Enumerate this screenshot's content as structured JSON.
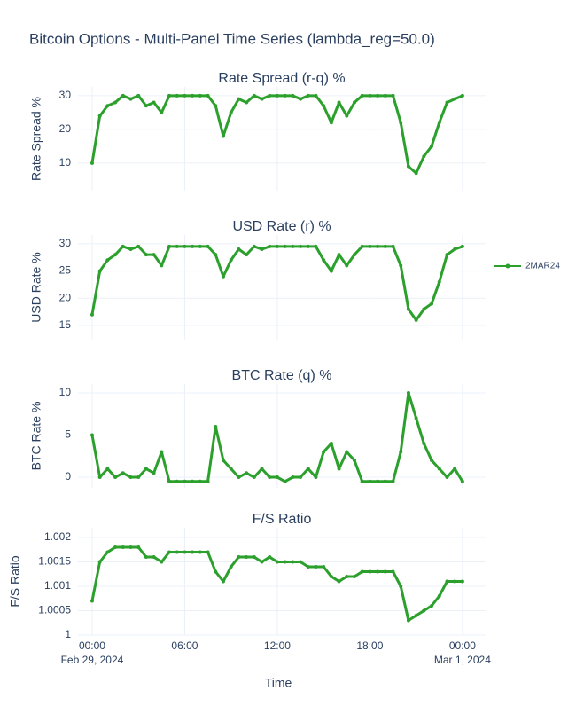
{
  "chart_data": {
    "type": "line",
    "title": "Bitcoin Options - Multi-Panel Time Series (lambda_reg=50.0)",
    "xlabel": "Time",
    "name": "2MAR24",
    "color": "#2ca02c",
    "grid": true,
    "xlim": [
      "2024-02-28T23:05",
      "2024-03-01T01:30"
    ],
    "xticks": [
      {
        "value": "2024-02-29T00:00",
        "label": "00:00",
        "date": "Feb 29, 2024"
      },
      {
        "value": "2024-02-29T06:00",
        "label": "06:00"
      },
      {
        "value": "2024-02-29T12:00",
        "label": "12:00"
      },
      {
        "value": "2024-02-29T18:00",
        "label": "18:00"
      },
      {
        "value": "2024-03-01T00:00",
        "label": "00:00",
        "date": "Mar 1, 2024"
      }
    ],
    "x": [
      "2024-02-29T00:00",
      "2024-02-29T00:30",
      "2024-02-29T01:00",
      "2024-02-29T01:30",
      "2024-02-29T02:00",
      "2024-02-29T02:30",
      "2024-02-29T03:00",
      "2024-02-29T03:30",
      "2024-02-29T04:00",
      "2024-02-29T04:30",
      "2024-02-29T05:00",
      "2024-02-29T05:30",
      "2024-02-29T06:00",
      "2024-02-29T06:30",
      "2024-02-29T07:00",
      "2024-02-29T07:30",
      "2024-02-29T08:00",
      "2024-02-29T08:30",
      "2024-02-29T09:00",
      "2024-02-29T09:30",
      "2024-02-29T10:00",
      "2024-02-29T10:30",
      "2024-02-29T11:00",
      "2024-02-29T11:30",
      "2024-02-29T12:00",
      "2024-02-29T12:30",
      "2024-02-29T13:00",
      "2024-02-29T13:30",
      "2024-02-29T14:00",
      "2024-02-29T14:30",
      "2024-02-29T15:00",
      "2024-02-29T15:30",
      "2024-02-29T16:00",
      "2024-02-29T16:30",
      "2024-02-29T17:00",
      "2024-02-29T17:30",
      "2024-02-29T18:00",
      "2024-02-29T18:30",
      "2024-02-29T19:00",
      "2024-02-29T19:30",
      "2024-02-29T20:00",
      "2024-02-29T20:30",
      "2024-02-29T21:00",
      "2024-02-29T21:30",
      "2024-02-29T22:00",
      "2024-02-29T22:30",
      "2024-02-29T23:00",
      "2024-02-29T23:30",
      "2024-03-01T00:00"
    ],
    "panels": [
      {
        "title": "Rate Spread (r-q) %",
        "ylabel": "Rate Spread %",
        "ylim": [
          1.8,
          32.6
        ],
        "yticks": [
          10,
          20,
          30
        ],
        "values": [
          10,
          24,
          27,
          28,
          30,
          29,
          30,
          27,
          28,
          25,
          30,
          30,
          30,
          30,
          30,
          30,
          27,
          18,
          25,
          29,
          28,
          30,
          29,
          30,
          30,
          30,
          30,
          29,
          30,
          30,
          27,
          22,
          28,
          24,
          28,
          30,
          30,
          30,
          30,
          30,
          22,
          9,
          7,
          12,
          15,
          22,
          28,
          29,
          30
        ]
      },
      {
        "title": "USD Rate (r) %",
        "ylabel": "USD Rate %",
        "ylim": [
          12.4,
          31.6
        ],
        "yticks": [
          15,
          20,
          25,
          30
        ],
        "values": [
          17,
          25,
          27,
          28,
          29.5,
          29,
          29.5,
          28,
          28,
          26,
          29.5,
          29.5,
          29.5,
          29.5,
          29.5,
          29.5,
          28,
          24,
          27,
          29,
          28,
          29.5,
          29,
          29.5,
          29.5,
          29.5,
          29.5,
          29.5,
          29.5,
          29.5,
          27,
          25,
          28,
          26,
          28,
          29.5,
          29.5,
          29.5,
          29.5,
          29.5,
          26,
          18,
          16,
          18,
          19,
          23,
          28,
          29,
          29.5
        ]
      },
      {
        "title": "BTC Rate (q) %",
        "ylabel": "BTC Rate %",
        "ylim": [
          -1.26,
          11.05
        ],
        "yticks": [
          0,
          5,
          10
        ],
        "values": [
          5,
          0,
          1,
          0,
          0.5,
          0,
          0,
          1,
          0.5,
          3,
          -0.5,
          -0.5,
          -0.5,
          -0.5,
          -0.5,
          -0.5,
          6,
          2,
          1,
          0,
          0.5,
          0,
          1,
          0,
          0,
          -0.5,
          0,
          0,
          1,
          0,
          3,
          4,
          1,
          3,
          2,
          -0.5,
          -0.5,
          -0.5,
          -0.5,
          -0.5,
          3,
          10,
          7,
          4,
          2,
          1,
          0,
          1,
          -0.5
        ]
      },
      {
        "title": "F/S Ratio",
        "ylabel": "F/S Ratio",
        "ylim": [
          1,
          1.0022
        ],
        "yticks": [
          1,
          1.0005,
          1.001,
          1.0015,
          1.002
        ],
        "values": [
          1.0007,
          1.0015,
          1.0017,
          1.0018,
          1.0018,
          1.0018,
          1.0018,
          1.0016,
          1.0016,
          1.0015,
          1.0017,
          1.0017,
          1.0017,
          1.0017,
          1.0017,
          1.0017,
          1.0013,
          1.0011,
          1.0014,
          1.0016,
          1.0016,
          1.0016,
          1.0015,
          1.0016,
          1.0015,
          1.0015,
          1.0015,
          1.0015,
          1.0014,
          1.0014,
          1.0014,
          1.0012,
          1.0011,
          1.0012,
          1.0012,
          1.0013,
          1.0013,
          1.0013,
          1.0013,
          1.0013,
          1.001,
          1.0003,
          1.0004,
          1.0005,
          1.0006,
          1.0008,
          1.0011,
          1.0011,
          1.0011
        ]
      }
    ]
  }
}
